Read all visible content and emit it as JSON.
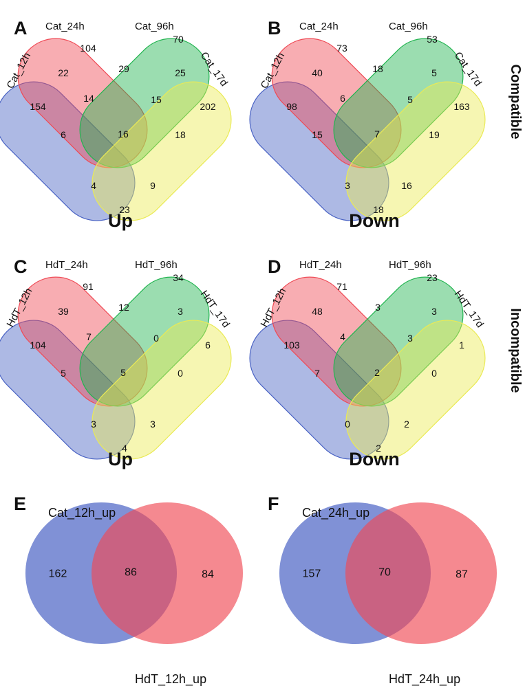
{
  "colors": {
    "set1": "#4a63c4",
    "set2": "#ef4a55",
    "set3": "#22b450",
    "set4": "#eaea55",
    "text": "#111111",
    "background": "#ffffff"
  },
  "side_labels": {
    "top": "Compatible",
    "middle": "Incompatible"
  },
  "venn4_panels": [
    {
      "letter": "A",
      "direction": "Up",
      "sets": [
        "Cat_12h",
        "Cat_24h",
        "Cat_96h",
        "Cat_17d"
      ],
      "regions": {
        "a": "154",
        "b": "104",
        "c": "70",
        "d": "202",
        "ab": "22",
        "bc": "29",
        "cd": "25",
        "abc": "14",
        "bcd": "15",
        "ac": "6",
        "bd": "18",
        "abcd": "16",
        "acd": "4",
        "abd": "9",
        "ad": "23"
      }
    },
    {
      "letter": "B",
      "direction": "Down",
      "sets": [
        "Cat_12h",
        "Cat_24h",
        "Cat_96h",
        "Cat_17d"
      ],
      "regions": {
        "a": "98",
        "b": "73",
        "c": "53",
        "d": "163",
        "ab": "40",
        "bc": "18",
        "cd": "5",
        "abc": "6",
        "bcd": "5",
        "ac": "15",
        "bd": "19",
        "abcd": "7",
        "acd": "3",
        "abd": "16",
        "ad": "18"
      }
    },
    {
      "letter": "C",
      "direction": "Up",
      "sets": [
        "HdT_12h",
        "HdT_24h",
        "HdT_96h",
        "HdT_17d"
      ],
      "regions": {
        "a": "104",
        "b": "91",
        "c": "34",
        "d": "6",
        "ab": "39",
        "bc": "12",
        "cd": "3",
        "abc": "7",
        "bcd": "0",
        "ac": "5",
        "bd": "0",
        "abcd": "5",
        "acd": "3",
        "abd": "3",
        "ad": "4"
      }
    },
    {
      "letter": "D",
      "direction": "Down",
      "sets": [
        "HdT_12h",
        "HdT_24h",
        "HdT_96h",
        "HdT_17d"
      ],
      "regions": {
        "a": "103",
        "b": "71",
        "c": "23",
        "d": "1",
        "ab": "48",
        "bc": "3",
        "cd": "3",
        "abc": "4",
        "bcd": "3",
        "ac": "7",
        "bd": "0",
        "abcd": "2",
        "acd": "0",
        "abd": "2",
        "ad": "2"
      }
    }
  ],
  "venn2_panels": [
    {
      "letter": "E",
      "set_left": "Cat_12h_up",
      "set_right": "HdT_12h_up",
      "only_left": "162",
      "both": "86",
      "only_right": "84"
    },
    {
      "letter": "F",
      "set_left": "Cat_24h_up",
      "set_right": "HdT_24h_up",
      "only_left": "157",
      "both": "70",
      "only_right": "87"
    }
  ]
}
